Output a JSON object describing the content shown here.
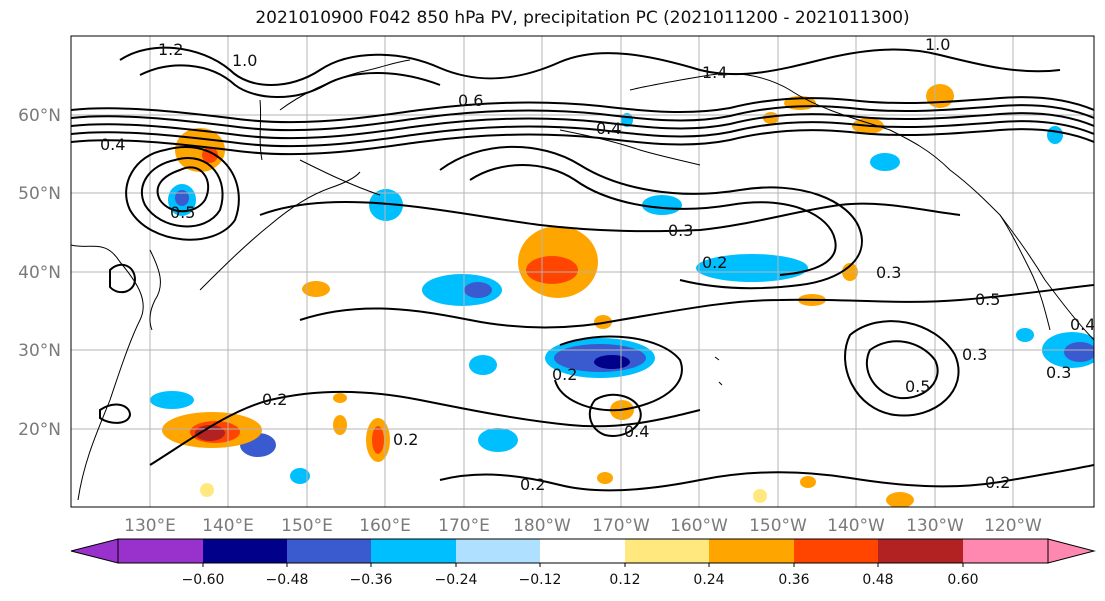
{
  "title": "2021010900 F042 850 hPa PV, precipitation PC (2021011200 - 2021011300)",
  "lat_labels": [
    "60°N",
    "50°N",
    "40°N",
    "30°N",
    "20°N"
  ],
  "lon_labels": [
    "130°E",
    "140°E",
    "150°E",
    "160°E",
    "170°E",
    "180°W",
    "170°W",
    "160°W",
    "150°W",
    "140°W",
    "130°W",
    "120°W"
  ],
  "colorbar": {
    "ticks": [
      "−0.60",
      "−0.48",
      "−0.36",
      "−0.24",
      "−0.12",
      "0.12",
      "0.24",
      "0.36",
      "0.48",
      "0.60"
    ],
    "colors": [
      "#9932cc",
      "#00008b",
      "#3a5bd0",
      "#00bfff",
      "#b0e0ff",
      "#ffffff",
      "#ffe97f",
      "#ffa500",
      "#ff4500",
      "#b22222",
      "#ff88b0"
    ]
  },
  "contour_labels": [
    "1.2",
    "1.0",
    "1.0",
    "1.4",
    "0.6",
    "0.4",
    "0.5",
    "0.3",
    "0.3",
    "0.2",
    "0.3",
    "0.5",
    "0.3",
    "0.4",
    "0.2",
    "0.2",
    "0.4",
    "0.2",
    "0.2",
    "0.2",
    "0.4",
    "0.5"
  ],
  "precip_levels_shown": [
    "-0.48",
    "-0.36",
    "-0.24",
    "-0.12",
    "0.12",
    "0.24",
    "0.36",
    "0.48"
  ]
}
